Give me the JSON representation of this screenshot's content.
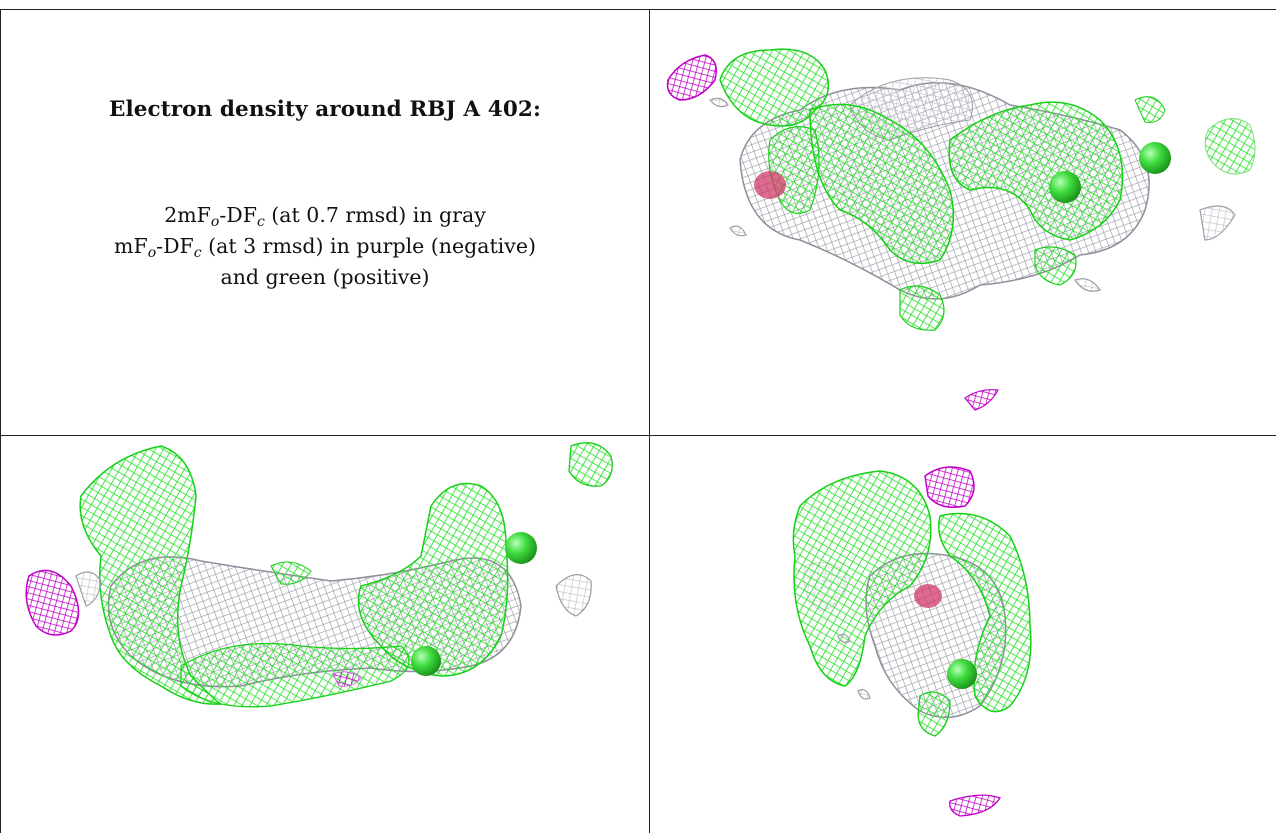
{
  "panel_text": {
    "title": "Electron density around RBJ A 402:",
    "line1": {
      "a": "2mF",
      "o": "o",
      "b": "-DF",
      "c": "c",
      "rest": " (at 0.7 rmsd) in gray"
    },
    "line2": {
      "a": "mF",
      "o": "o",
      "b": "-DF",
      "c": "c",
      "rest": " (at 3 rmsd) in purple (negative)"
    },
    "line3": "and green (positive)"
  },
  "colors": {
    "gray_mesh": "#a9a9b3",
    "negative_mesh": "#c400c8",
    "positive_mesh": "#22e022",
    "atom_green": "#3fdc3f",
    "atom_red": "#d23a6a",
    "atom_blue": "#4a5fd6",
    "rule": "#222222"
  },
  "views": [
    {
      "name": "density-view-top-right"
    },
    {
      "name": "density-view-bottom-left"
    },
    {
      "name": "density-view-bottom-right"
    }
  ]
}
